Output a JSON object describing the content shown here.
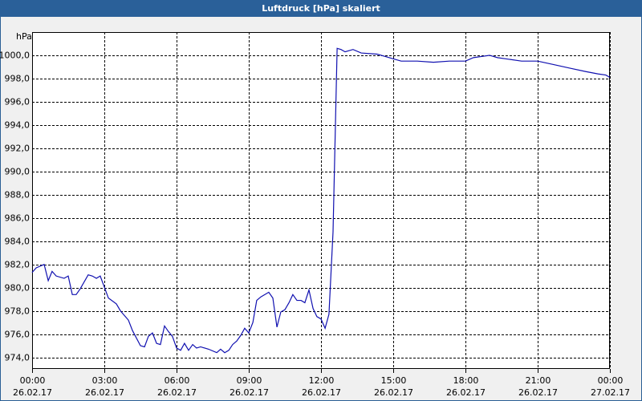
{
  "chart_data": {
    "type": "line",
    "title": "Luftdruck [hPa] skaliert",
    "ylabel": "hPa",
    "x": [
      0,
      0.17,
      0.5,
      0.67,
      0.83,
      1,
      1.33,
      1.5,
      1.67,
      1.83,
      2,
      2.33,
      2.5,
      2.67,
      2.83,
      3.17,
      3.5,
      3.67,
      4,
      4.17,
      4.5,
      4.67,
      4.83,
      5,
      5.17,
      5.33,
      5.5,
      5.67,
      5.83,
      6,
      6.17,
      6.33,
      6.5,
      6.67,
      6.83,
      7,
      7.33,
      7.67,
      7.83,
      8,
      8.17,
      8.33,
      8.5,
      8.67,
      8.83,
      9,
      9.17,
      9.33,
      9.5,
      9.83,
      10,
      10.17,
      10.33,
      10.5,
      10.67,
      10.83,
      11,
      11.17,
      11.33,
      11.5,
      11.67,
      11.83,
      12,
      12.17,
      12.33,
      12.5,
      12.67,
      12.83,
      13,
      13.33,
      13.67,
      14.33,
      14.67,
      15,
      15.33,
      16,
      16.67,
      17.33,
      18,
      18.33,
      18.67,
      19,
      19.33,
      19.67,
      20.33,
      21,
      21.67,
      22.33,
      23,
      23.5,
      23.83,
      24
    ],
    "series": [
      {
        "name": "Luftdruck",
        "color": "#1010b0",
        "values": [
          981.3,
          981.7,
          982.0,
          980.6,
          981.4,
          981.0,
          980.8,
          981.0,
          979.4,
          979.4,
          979.9,
          981.1,
          981.0,
          980.8,
          981.0,
          979.1,
          978.6,
          978.0,
          977.2,
          976.3,
          975.0,
          974.9,
          975.8,
          976.1,
          975.2,
          975.1,
          976.7,
          976.2,
          975.8,
          974.8,
          974.6,
          975.2,
          974.6,
          975.1,
          974.8,
          974.9,
          974.7,
          974.4,
          974.7,
          974.4,
          974.6,
          975.1,
          975.4,
          975.9,
          976.5,
          976.1,
          977.0,
          978.9,
          979.2,
          979.6,
          979.1,
          976.6,
          977.9,
          978.1,
          978.7,
          979.4,
          978.9,
          978.9,
          978.7,
          979.8,
          978.2,
          977.5,
          977.3,
          976.5,
          977.7,
          984.8,
          1000.6,
          1000.5,
          1000.3,
          1000.5,
          1000.2,
          1000.1,
          999.9,
          999.7,
          999.5,
          999.5,
          999.4,
          999.5,
          999.5,
          999.8,
          999.9,
          1000.0,
          999.8,
          999.7,
          999.5,
          999.5,
          999.2,
          998.9,
          998.6,
          998.4,
          998.3,
          998.1
        ]
      }
    ],
    "xlim": [
      0,
      24
    ],
    "xticks": [
      {
        "value": 0,
        "label": "00:00"
      },
      {
        "value": 3,
        "label": "03:00"
      },
      {
        "value": 6,
        "label": "06:00"
      },
      {
        "value": 9,
        "label": "09:00"
      },
      {
        "value": 12,
        "label": "12:00"
      },
      {
        "value": 15,
        "label": "15:00"
      },
      {
        "value": 18,
        "label": "18:00"
      },
      {
        "value": 21,
        "label": "21:00"
      },
      {
        "value": 24,
        "label": "00:00"
      }
    ],
    "xtick_dates": [
      "26.02.17",
      "26.02.17",
      "26.02.17",
      "26.02.17",
      "26.02.17",
      "26.02.17",
      "26.02.17",
      "26.02.17",
      "27.02.17"
    ],
    "ylim": [
      973,
      1002
    ],
    "yticks": [
      {
        "value": 974,
        "label": "974,0"
      },
      {
        "value": 976,
        "label": "976,0"
      },
      {
        "value": 978,
        "label": "978,0"
      },
      {
        "value": 980,
        "label": "980,0"
      },
      {
        "value": 982,
        "label": "982,0"
      },
      {
        "value": 984,
        "label": "984,0"
      },
      {
        "value": 986,
        "label": "986,0"
      },
      {
        "value": 988,
        "label": "988,0"
      },
      {
        "value": 990,
        "label": "990,0"
      },
      {
        "value": 992,
        "label": "992,0"
      },
      {
        "value": 994,
        "label": "994,0"
      },
      {
        "value": 996,
        "label": "996,0"
      },
      {
        "value": 998,
        "label": "998,0"
      },
      {
        "value": 1000,
        "label": "1000,0"
      }
    ],
    "grid": true
  }
}
